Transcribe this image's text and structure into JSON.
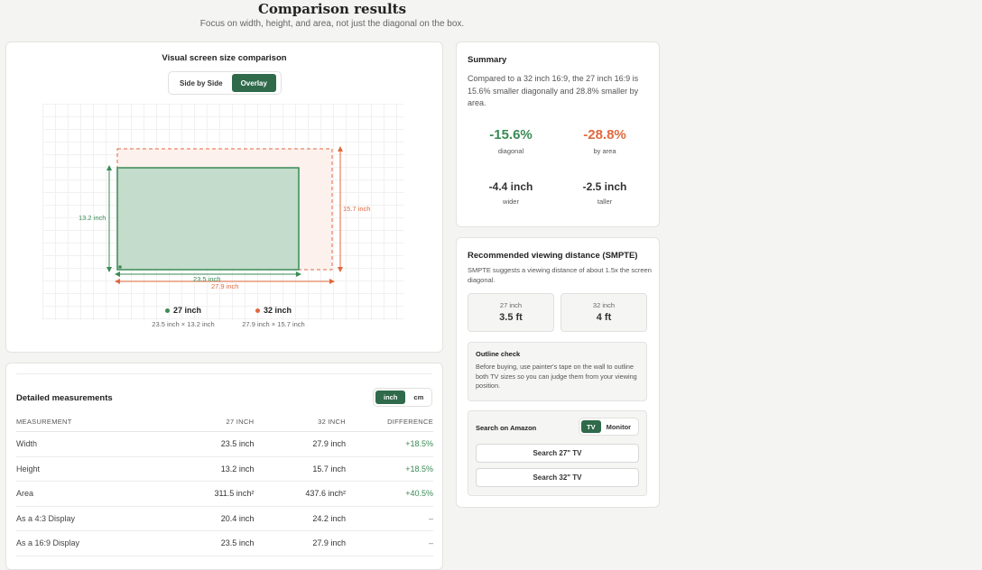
{
  "header": {
    "title": "Comparison results",
    "subtitle": "Focus on width, height, and area, not just the diagonal on the box."
  },
  "visual": {
    "title": "Visual screen size comparison",
    "modes": [
      "Side by Side",
      "Overlay"
    ],
    "active_mode": "Overlay",
    "small_height_label": "13.2 inch",
    "large_height_label": "15.7 inch",
    "small_width_label": "23.5 inch",
    "large_width_label": "27.9 inch",
    "legend": [
      {
        "name": "27 inch",
        "dims": "23.5 inch × 13.2 inch",
        "color": "#3a8a55"
      },
      {
        "name": "32 inch",
        "dims": "27.9 inch × 15.7 inch",
        "color": "#e0693e"
      }
    ]
  },
  "details": {
    "title": "Detailed measurements",
    "units": [
      "inch",
      "cm"
    ],
    "active_unit": "inch",
    "columns": [
      "MEASUREMENT",
      "27 INCH",
      "32 INCH",
      "DIFFERENCE"
    ],
    "rows": [
      [
        "Width",
        "23.5 inch",
        "27.9 inch",
        "+18.5%"
      ],
      [
        "Height",
        "13.2 inch",
        "15.7 inch",
        "+18.5%"
      ],
      [
        "Area",
        "311.5 inch²",
        "437.6 inch²",
        "+40.5%"
      ],
      [
        "As a 4:3 Display",
        "20.4 inch",
        "24.2 inch",
        "–"
      ],
      [
        "As a 16:9 Display",
        "23.5 inch",
        "27.9 inch",
        "–"
      ]
    ]
  },
  "summary": {
    "title": "Summary",
    "text": "Compared to a 32 inch 16:9, the 27 inch 16:9 is 15.6% smaller diagonally and 28.8% smaller by area.",
    "metrics": [
      {
        "value": "-15.6%",
        "label": "diagonal"
      },
      {
        "value": "-28.8%",
        "label": "by area"
      },
      {
        "value": "-4.4 inch",
        "label": "wider"
      },
      {
        "value": "-2.5 inch",
        "label": "taller"
      }
    ]
  },
  "viewing": {
    "title": "Recommended viewing distance (SMPTE)",
    "text": "SMPTE suggests a viewing distance of about 1.5x the screen diagonal.",
    "distances": [
      {
        "size": "27 inch",
        "distance": "3.5 ft"
      },
      {
        "size": "32 inch",
        "distance": "4 ft"
      }
    ],
    "outline_title": "Outline check",
    "outline_text": "Before buying, use painter's tape on the wall to outline both TV sizes so you can judge them from your viewing position.",
    "amazon_title": "Search on Amazon",
    "amazon_modes": [
      "TV",
      "Monitor"
    ],
    "amazon_active": "TV",
    "search_buttons": [
      "Search 27\" TV",
      "Search 32\" TV"
    ]
  }
}
